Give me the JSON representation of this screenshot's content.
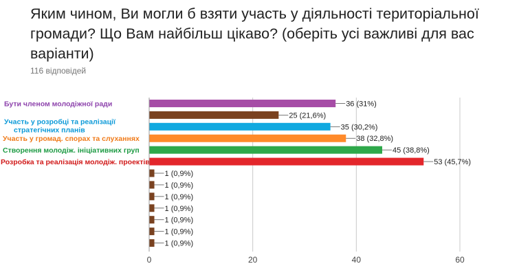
{
  "question": {
    "title": "Яким чином, Ви могли б взяти участь у діяльності територіальної громади? Що Вам найбільш цікаво? (оберіть усі важливі для вас варіанти)",
    "responses": "116 відповідей"
  },
  "chart_data": {
    "type": "bar",
    "orientation": "horizontal",
    "categories": [
      [
        "Бути членом молодіжної ради"
      ],
      [
        ""
      ],
      [
        "Участь у розробці та реалізації",
        "стратегічних планів"
      ],
      [
        "Участь у громад. спорах та слуханнях"
      ],
      [
        "Створення молодіж. ініціативних груп"
      ],
      [
        "Розробка та реалізація молодіж. проектів"
      ],
      [
        ""
      ],
      [
        ""
      ],
      [
        ""
      ],
      [
        ""
      ],
      [
        ""
      ],
      [
        ""
      ],
      [
        ""
      ]
    ],
    "label_colors": [
      "#8e44ad",
      "#6b3a1f",
      "#0d9ad8",
      "#f07b1a",
      "#1e9b44",
      "#d11a1a",
      "#6b3a1f",
      "#6b3a1f",
      "#6b3a1f",
      "#6b3a1f",
      "#6b3a1f",
      "#6b3a1f",
      "#6b3a1f"
    ],
    "bar_colors": [
      "#a64ca6",
      "#7a4220",
      "#11a9e0",
      "#ff8a2a",
      "#2ea84a",
      "#e3262b",
      "#7a4220",
      "#7a4220",
      "#7a4220",
      "#7a4220",
      "#7a4220",
      "#7a4220",
      "#7a4220"
    ],
    "values": [
      36,
      25,
      35,
      38,
      45,
      53,
      1,
      1,
      1,
      1,
      1,
      1,
      1
    ],
    "value_labels": [
      "36 (31%)",
      "25 (21,6%)",
      "35 (30,2%)",
      "38 (32,8%)",
      "45 (38,8%)",
      "53 (45,7%)",
      "1 (0,9%)",
      "1 (0,9%)",
      "1 (0,9%)",
      "1 (0,9%)",
      "1 (0,9%)",
      "1 (0,9%)",
      "1 (0,9%)"
    ],
    "xticks": [
      "0",
      "20",
      "40",
      "60"
    ],
    "xlim": [
      0,
      60
    ],
    "grid": true
  }
}
